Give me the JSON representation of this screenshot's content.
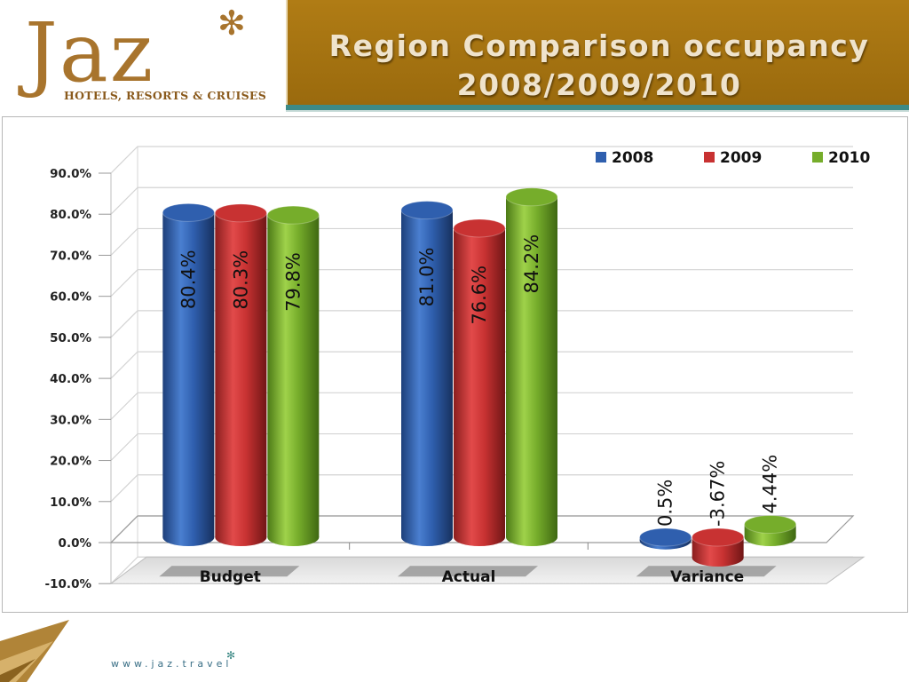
{
  "brand": {
    "logo_word": "Jaz",
    "tagline": "HOTELS, RESORTS & CRUISES",
    "url": "www.jaz.travel"
  },
  "header": {
    "title_line1": "Region Comparison occupancy",
    "title_line2": "2008/2009/2010"
  },
  "colors": {
    "brand_gold": "#a8742d",
    "band": "#9f6e10",
    "teal": "#3d8a86",
    "s2008": "#2f5fae",
    "s2009": "#c83232",
    "s2010": "#76ad2b"
  },
  "chart_data": {
    "type": "bar",
    "categories": [
      "Budget",
      "Actual",
      "Variance"
    ],
    "series": [
      {
        "name": "2008",
        "values": [
          80.4,
          81.0,
          0.5
        ],
        "labels": [
          "80.4%",
          "81.0%",
          "0.5%"
        ]
      },
      {
        "name": "2009",
        "values": [
          80.3,
          76.6,
          -3.67
        ],
        "labels": [
          "80.3%",
          "76.6%",
          "-3.67%"
        ]
      },
      {
        "name": "2010",
        "values": [
          79.8,
          84.2,
          4.44
        ],
        "labels": [
          "79.8%",
          "84.2%",
          "4.44%"
        ]
      }
    ],
    "y_ticks": [
      "90.0%",
      "80.0%",
      "70.0%",
      "60.0%",
      "50.0%",
      "40.0%",
      "30.0%",
      "20.0%",
      "10.0%",
      "0.0%",
      "-10.0%"
    ],
    "ylim": [
      -10,
      90
    ],
    "grid": true,
    "legend_position": "top-right",
    "three_d": true
  }
}
